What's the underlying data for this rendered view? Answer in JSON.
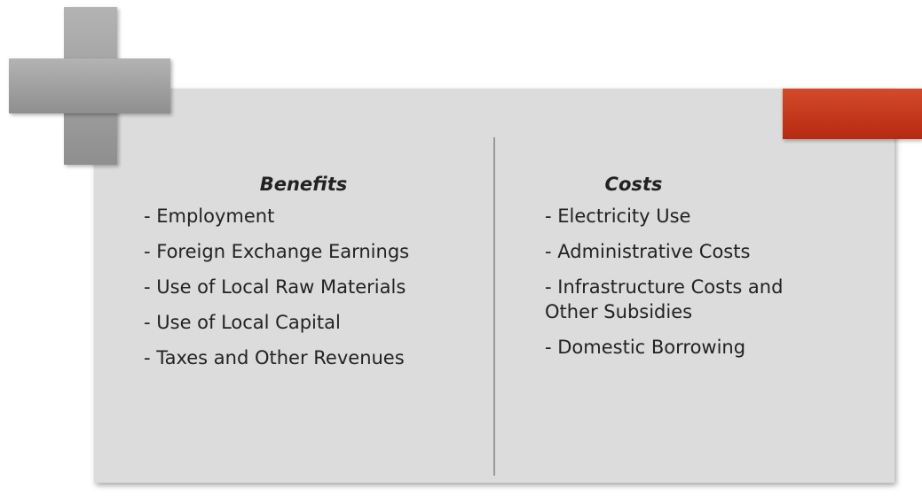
{
  "benefits": {
    "heading": "Benefits",
    "items": [
      "- Employment",
      "- Foreign Exchange Earnings",
      "- Use of Local Raw Materials",
      "- Use of Local Capital",
      "- Taxes and Other Revenues"
    ]
  },
  "costs": {
    "heading": "Costs",
    "items": [
      "- Electricity Use",
      "- Administrative Costs",
      "- Infrastructure Costs and Other Subsidies",
      "- Domestic Borrowing"
    ]
  }
}
